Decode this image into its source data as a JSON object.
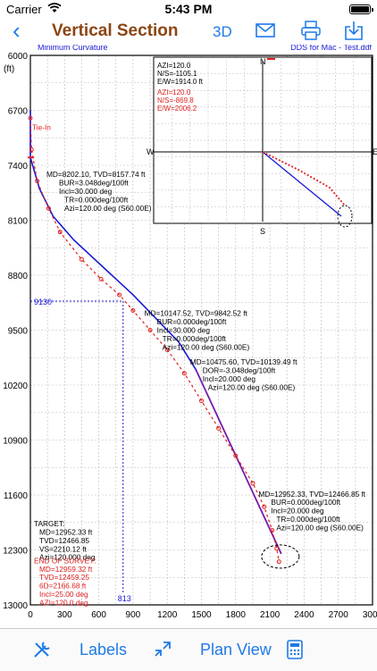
{
  "status": {
    "carrier": "Carrier",
    "time": "5:43 PM"
  },
  "nav": {
    "title": "Vertical Section",
    "btn_3d": "3D",
    "icons": [
      "back-icon",
      "mail-icon",
      "print-icon",
      "save-icon"
    ]
  },
  "chart_data": {
    "type": "line",
    "subtitle_left": "Minimum Curvature",
    "subtitle_right": "DDS for Mac - Test.ddf",
    "unit_label": "(ft)",
    "y_ticks": [
      6000,
      6700,
      7400,
      8100,
      8800,
      9500,
      10200,
      10900,
      11600,
      12300,
      13000
    ],
    "x_ticks": [
      0,
      300,
      600,
      900,
      1200,
      1500,
      1800,
      2100,
      2400,
      2700,
      3000
    ],
    "xlim": [
      0,
      3000
    ],
    "ylim": [
      6000,
      13000
    ],
    "planned_path": [
      [
        0,
        6700
      ],
      [
        0,
        7300
      ],
      [
        80,
        7700
      ],
      [
        200,
        8050
      ],
      [
        380,
        8350
      ],
      [
        900,
        9050
      ],
      [
        1300,
        9650
      ],
      [
        1450,
        10000
      ],
      [
        2200,
        12350
      ]
    ],
    "survey_points": [
      [
        0,
        6800
      ],
      [
        10,
        7200
      ],
      [
        60,
        7600
      ],
      [
        160,
        7950
      ],
      [
        260,
        8250
      ],
      [
        450,
        8600
      ],
      [
        620,
        8850
      ],
      [
        780,
        9050
      ],
      [
        900,
        9250
      ],
      [
        1050,
        9500
      ],
      [
        1200,
        9750
      ],
      [
        1350,
        10050
      ],
      [
        1500,
        10400
      ],
      [
        1650,
        10750
      ],
      [
        1800,
        11100
      ],
      [
        1950,
        11450
      ],
      [
        2050,
        11750
      ],
      [
        2120,
        12050
      ],
      [
        2160,
        12280
      ],
      [
        2180,
        12450
      ]
    ],
    "annotations": [
      {
        "key": "tie_in",
        "lines": [
          "Tie-In"
        ],
        "color": "#e02020"
      },
      {
        "key": "pt1",
        "lines": [
          "MD=8202.10, TVD=8157.74 ft",
          "BUR=3.048deg/100ft",
          "Incl=30.000 deg",
          "TR=0.000deg/100ft",
          "Azi=120.00 deg (S60.00E)"
        ],
        "color": "#000"
      },
      {
        "key": "pt2",
        "lines": [
          "MD=10147.52, TVD=9842.52 ft",
          "BUR=0.000deg/100ft",
          "Incl=30.000 deg",
          "TR=0.000deg/100ft",
          "Azi=120.00 deg (S60.00E)"
        ],
        "color": "#000"
      },
      {
        "key": "pt3",
        "lines": [
          "MD=10475.60, TVD=10139.49 ft",
          "DOR=-3.048deg/100ft",
          "Incl=20.000 deg",
          "Azi=120.00 deg (S60.00E)"
        ],
        "color": "#000"
      },
      {
        "key": "pt4",
        "lines": [
          "MD=12952.33, TVD=12466.85 ft",
          "BUR=0.000deg/100ft",
          "Incl=20.000 deg",
          "TR=0.000deg/100ft",
          "Azi=120.00 deg (S60.00E)"
        ],
        "color": "#000"
      },
      {
        "key": "target",
        "lines": [
          "TARGET:",
          "MD=12952.33 ft",
          "TVD=12466.85",
          "VS=2210.12 ft",
          "Azi=120.000 deg"
        ],
        "color": "#000"
      },
      {
        "key": "eos",
        "lines": [
          "END OF SURVEY:",
          "MD=12959.32 ft",
          "TVD=12459.25",
          "6D=2166.68 ft",
          "Incl=25.00 deg",
          "AZI=120.0 deg"
        ],
        "color": "#e02020"
      }
    ],
    "markers": {
      "y_9130": "9130",
      "x_813": "813"
    },
    "plan_inset": {
      "compass": [
        "N",
        "S",
        "E",
        "W"
      ],
      "black_lines": [
        "AZI=120.0",
        "N/S=-1105.1",
        "E/W=1914.0 ft"
      ],
      "red_lines": [
        "AZI=120.0",
        "N/S=-869.8",
        "E/W=2006.2"
      ]
    },
    "colors": {
      "planned": "#1a1ad6",
      "planned_end": "#7a1aa8",
      "survey": "#e02020",
      "accent": "#1f7ae6",
      "title": "#8b4513"
    }
  },
  "toolbar": {
    "labels": "Labels",
    "plan_view": "Plan View",
    "icons": [
      "tools-icon",
      "drag-icon",
      "calculator-icon"
    ]
  }
}
